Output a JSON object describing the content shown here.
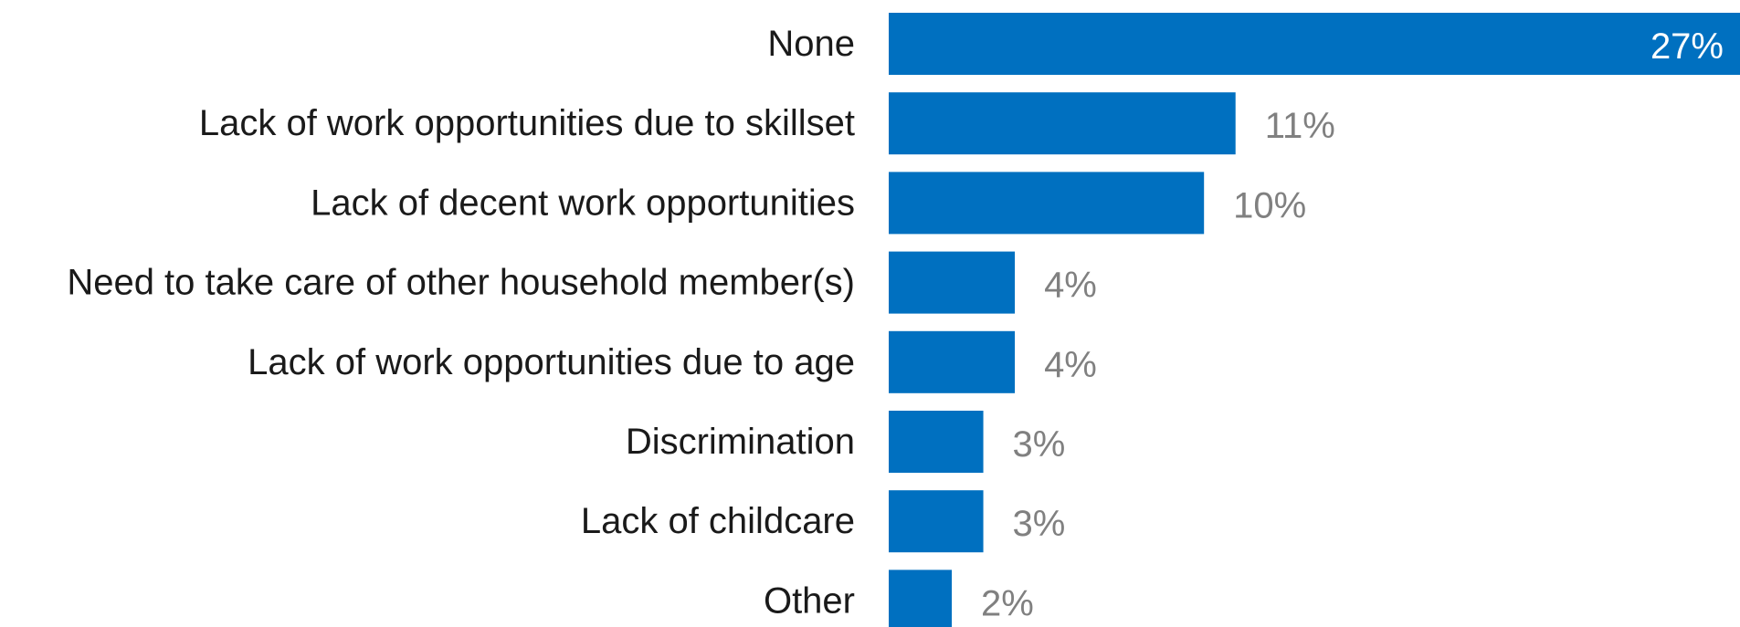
{
  "chart_data": {
    "type": "bar",
    "orientation": "horizontal",
    "categories": [
      "None",
      "Lack of work opportunities due to skillset",
      "Lack of decent work opportunities",
      "Need to take care of other household member(s)",
      "Lack of work opportunities due to age",
      "Discrimination",
      "Lack of childcare",
      "Other"
    ],
    "values": [
      27,
      11,
      10,
      4,
      4,
      3,
      3,
      2
    ],
    "value_labels": [
      "27%",
      "11%",
      "10%",
      "4%",
      "4%",
      "3%",
      "3%",
      "2%"
    ],
    "value_suffix": "%",
    "title": "",
    "xlabel": "",
    "ylabel": "",
    "xlim": [
      0,
      27
    ],
    "grid": false,
    "legend": "none",
    "colors": {
      "bar": "#0070c0",
      "category_text": "#1a1a1a",
      "value_text_outside": "#808080",
      "value_text_inside": "#ffffff"
    }
  }
}
